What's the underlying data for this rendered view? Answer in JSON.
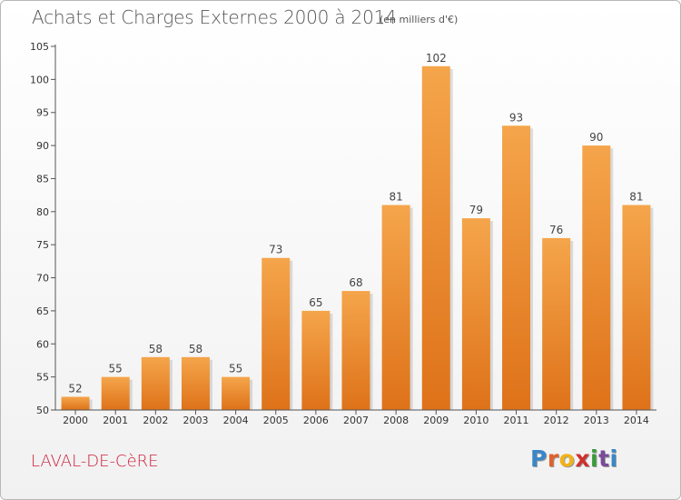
{
  "title": "Achats et Charges Externes 2000 à 2014",
  "subtitle": "(en milliers d'€)",
  "town": "LAVAL-DE-CèRE",
  "brand": {
    "letters": [
      "P",
      "r",
      "o",
      "x",
      "i",
      "t",
      "i"
    ],
    "colors": [
      "#3a87c8",
      "#e2622a",
      "#f2b21a",
      "#d0312d",
      "#3a9a3a",
      "#7a4b9a",
      "#3a87c8"
    ]
  },
  "colors": {
    "bar_top": "#f5a54b",
    "bar_bottom": "#de7219",
    "title": "#555555",
    "town": "#cc1f3a"
  },
  "chart_data": {
    "type": "bar",
    "title": "Achats et Charges Externes 2000 à 2014",
    "subtitle": "(en milliers d'€)",
    "xlabel": "",
    "ylabel": "",
    "categories": [
      "2000",
      "2001",
      "2002",
      "2003",
      "2004",
      "2005",
      "2006",
      "2007",
      "2008",
      "2009",
      "2010",
      "2011",
      "2012",
      "2013",
      "2014"
    ],
    "values": [
      52,
      55,
      58,
      58,
      55,
      73,
      65,
      68,
      81,
      102,
      79,
      93,
      76,
      90,
      81
    ],
    "ylim": [
      50,
      105
    ],
    "yticks": [
      50,
      55,
      60,
      65,
      70,
      75,
      80,
      85,
      90,
      95,
      100,
      105
    ],
    "grid": false,
    "legend": "none"
  }
}
